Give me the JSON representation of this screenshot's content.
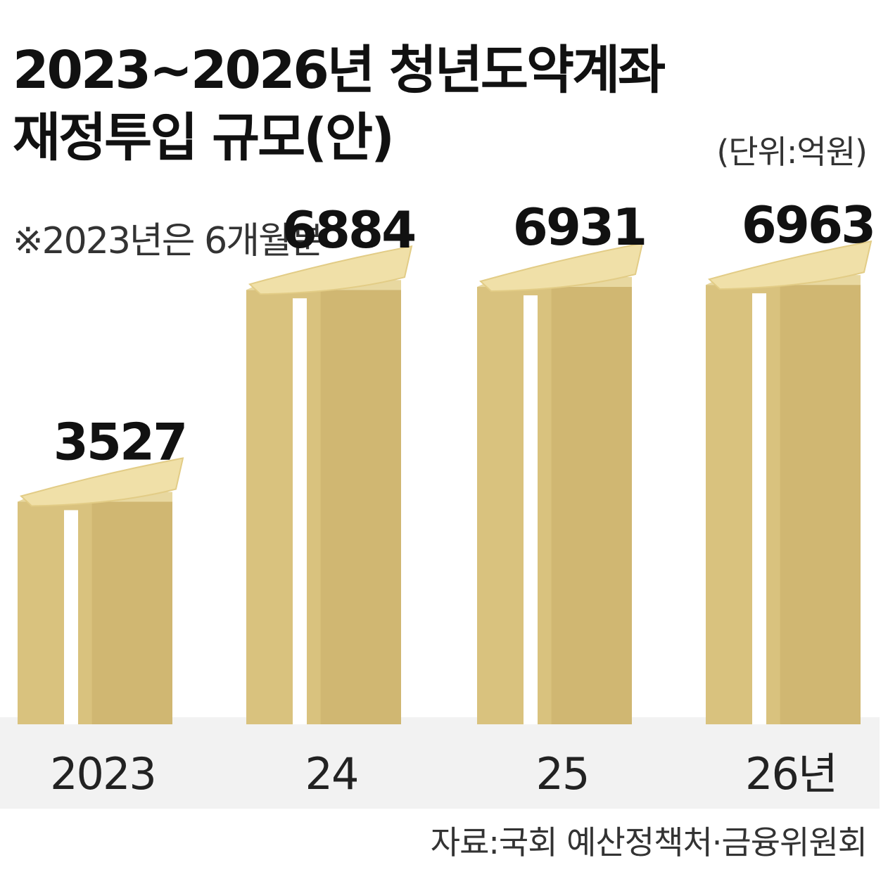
{
  "title_line1": "2023~2026년 청년도약계좌",
  "title_line2": "재정투입 규모(안)",
  "unit": "(단위:억원)",
  "note": "※2023년은 6개월분",
  "source": "자료:국회 예산정책처·금융위원회",
  "colors": {
    "box_front": "#d9c27e",
    "box_side": "#c9ae68",
    "box_top": "#e8d8a0",
    "ribbon": "#ffffff",
    "money": "#f0e0a8",
    "floor": "#f2f2f2"
  },
  "chart_data": {
    "type": "bar",
    "categories": [
      "2023",
      "24",
      "25",
      "26년"
    ],
    "values": [
      3527,
      6884,
      6931,
      6963
    ],
    "data_labels": [
      "3527",
      "6884",
      "6931",
      "6963"
    ],
    "title": "2023~2026년 청년도약계좌 재정투입 규모(안)",
    "unit": "억원",
    "ylim": [
      0,
      7800
    ],
    "grid": false,
    "legend": "none"
  }
}
